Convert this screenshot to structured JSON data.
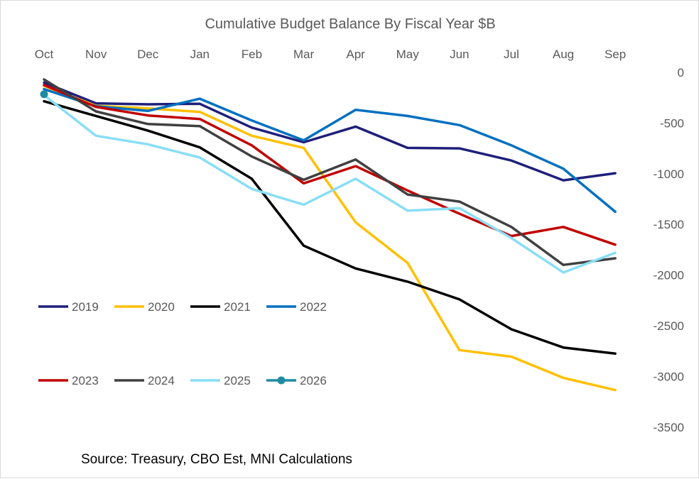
{
  "chart_data": {
    "type": "line",
    "title": "Cumulative Budget Balance By Fiscal Year $B",
    "source": "Source: Treasury, CBO Est, MNI Calculations",
    "categories": [
      "Oct",
      "Nov",
      "Dec",
      "Jan",
      "Feb",
      "Mar",
      "Apr",
      "May",
      "Jun",
      "Jul",
      "Aug",
      "Sep"
    ],
    "x_axis_position": "top",
    "y_axis_position": "right",
    "yticks": [
      0,
      -500,
      -1000,
      -1500,
      -2000,
      -2500,
      -3000,
      -3500
    ],
    "ylim": [
      -3500,
      0
    ],
    "grid": false,
    "legend": {
      "position": "left",
      "rows": 2
    },
    "series": [
      {
        "name": "2019",
        "color": "#1f1f7a",
        "marker": false,
        "values": [
          -100,
          -305,
          -315,
          -310,
          -545,
          -690,
          -535,
          -745,
          -750,
          -870,
          -1065,
          -995
        ]
      },
      {
        "name": "2020",
        "color": "#ffc000",
        "marker": false,
        "values": [
          -135,
          -330,
          -355,
          -390,
          -625,
          -745,
          -1480,
          -1880,
          -2740,
          -2805,
          -3015,
          -3135
        ]
      },
      {
        "name": "2021",
        "color": "#000000",
        "marker": false,
        "values": [
          -285,
          -430,
          -575,
          -740,
          -1050,
          -1710,
          -1935,
          -2065,
          -2240,
          -2535,
          -2715,
          -2775
        ]
      },
      {
        "name": "2022",
        "color": "#0070c0",
        "marker": false,
        "values": [
          -165,
          -335,
          -380,
          -260,
          -475,
          -670,
          -370,
          -430,
          -520,
          -720,
          -950,
          -1375
        ]
      },
      {
        "name": "2023",
        "color": "#c00000",
        "marker": false,
        "values": [
          -125,
          -340,
          -425,
          -460,
          -720,
          -1095,
          -925,
          -1165,
          -1395,
          -1615,
          -1525,
          -1700
        ]
      },
      {
        "name": "2024",
        "color": "#404040",
        "marker": false,
        "values": [
          -70,
          -385,
          -510,
          -530,
          -830,
          -1060,
          -860,
          -1205,
          -1275,
          -1525,
          -1900,
          -1835
        ]
      },
      {
        "name": "2025",
        "color": "#89def5",
        "marker": false,
        "values": [
          -225,
          -625,
          -710,
          -840,
          -1150,
          -1305,
          -1050,
          -1365,
          -1340,
          -1635,
          -1975,
          -1780
        ]
      },
      {
        "name": "2026",
        "color": "#1e8ca0",
        "marker": true,
        "values": [
          -215,
          null,
          null,
          null,
          null,
          null,
          null,
          null,
          null,
          null,
          null,
          null
        ]
      }
    ]
  }
}
